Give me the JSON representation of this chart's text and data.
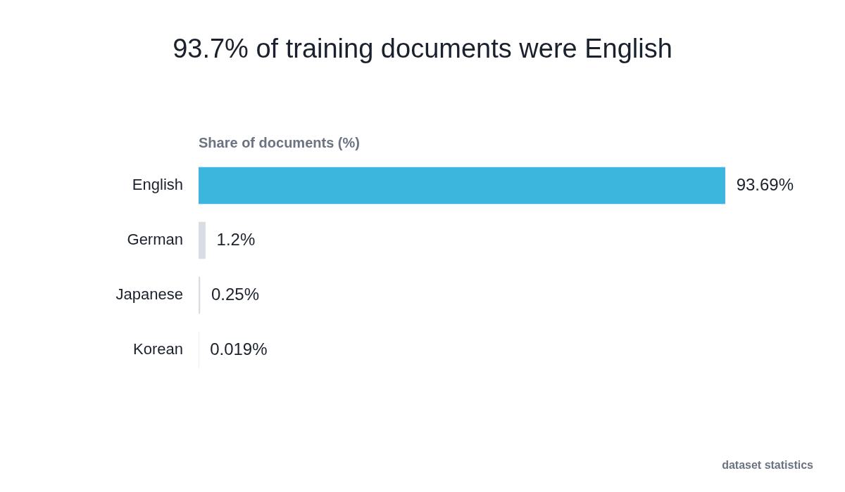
{
  "chart_data": {
    "type": "bar",
    "orientation": "horizontal",
    "title": "93.7% of training documents were English",
    "xlabel": "Share of documents (%)",
    "categories": [
      "English",
      "German",
      "Japanese",
      "Korean"
    ],
    "values": [
      93.69,
      1.2,
      0.25,
      0.019
    ],
    "colors": [
      "#3cb6dc",
      "#d9dde3",
      "#d9dde3",
      "#d9dde3"
    ],
    "value_labels": [
      "93.69%",
      "1.2%",
      "0.25%",
      "0.019%"
    ],
    "legend": false,
    "annotations": [
      "dataset statistics"
    ]
  }
}
